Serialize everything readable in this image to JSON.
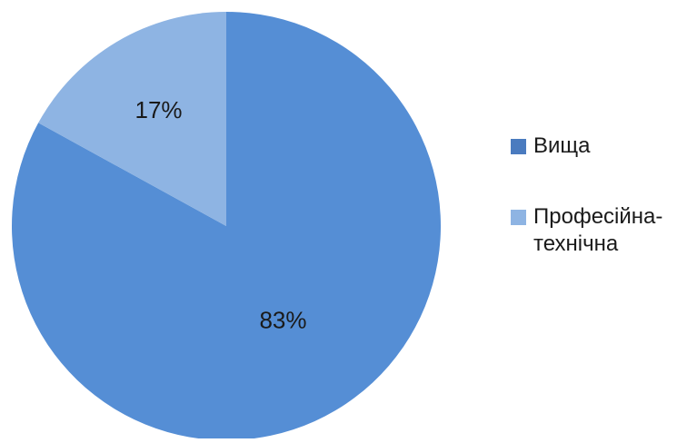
{
  "chart_data": {
    "type": "pie",
    "title": "",
    "legend_position": "right",
    "slices": [
      {
        "label": "Вища",
        "value": 83,
        "data_label": "83%",
        "color": "#558ed5",
        "legend_color": "#4a7bbf"
      },
      {
        "label": "Професійна-\nтехнічна",
        "value": 17,
        "data_label": "17%",
        "color": "#8eb4e3",
        "legend_color": "#8eb4e3"
      }
    ]
  }
}
